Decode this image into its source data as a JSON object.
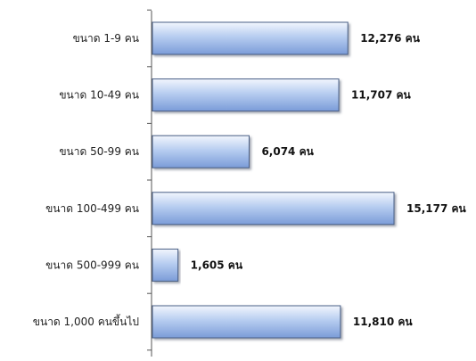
{
  "chart_data": {
    "type": "bar",
    "orientation": "horizontal",
    "categories": [
      "ขนาด 1-9 คน",
      "ขนาด 10-49 คน",
      "ขนาด 50-99 คน",
      "ขนาด 100-499 คน",
      "ขนาด 500-999 คน",
      "ขนาด 1,000 คนขึ้นไป"
    ],
    "values": [
      12276,
      11707,
      6074,
      15177,
      1605,
      11810
    ],
    "value_labels": [
      "12,276 คน",
      "11,707 คน",
      "6,074 คน",
      "15,177 คน",
      "1,605 คน",
      "11,810 คน"
    ],
    "title": "",
    "xlabel": "",
    "ylabel": "",
    "xlim": [
      0,
      15177
    ],
    "grid": false,
    "legend": "none",
    "colors": {
      "bar_light": "#f2f6fd",
      "bar_mid": "#b7cdf0",
      "bar_dark": "#7b9cd8",
      "bar_stroke": "#4a5f86",
      "bar_shadow": "#5b6478",
      "axis": "#555555"
    }
  }
}
